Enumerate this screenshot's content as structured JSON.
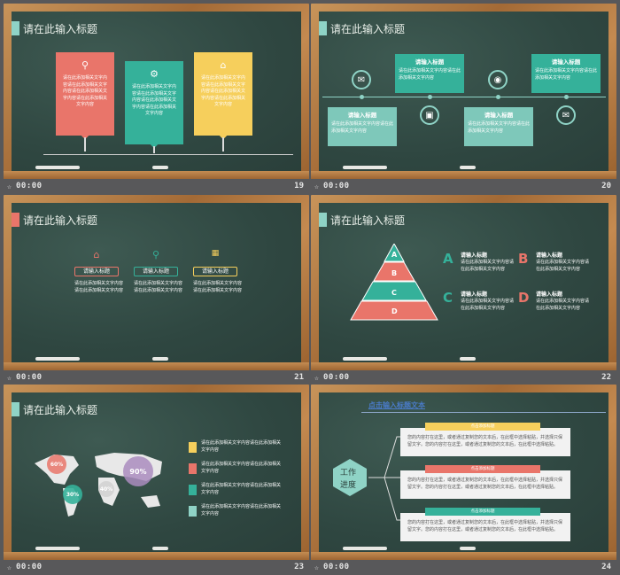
{
  "slides": [
    {
      "id": "19",
      "time": "00:00",
      "number": "19",
      "title": "请在此输入标题"
    },
    {
      "id": "20",
      "time": "00:00",
      "number": "20",
      "title": "请在此输入标题"
    },
    {
      "id": "21",
      "time": "00:00",
      "number": "21",
      "title": "请在此输入标题"
    },
    {
      "id": "22",
      "time": "00:00",
      "number": "22",
      "title": "请在此输入标题"
    },
    {
      "id": "23",
      "time": "00:00",
      "number": "23",
      "title": "请在此输入标题"
    },
    {
      "id": "24",
      "time": "00:00",
      "number": "24",
      "title": "点击输入标题文本"
    }
  ],
  "s19": {
    "cards": [
      {
        "text": "请在此添加相关文字内容请在此添加相关文字内容请在此添加相关文字内容请在此添加相关文字内容",
        "color": "#e9756a"
      },
      {
        "text": "请在此添加相关文字内容请在此添加相关文字内容请在此添加相关文字内容请在此添加相关文字内容",
        "color": "#35b19a"
      },
      {
        "text": "请在此添加相关文字内容请在此添加相关文字内容请在此添加相关文字内容请在此添加相关文字内容",
        "color": "#f6cf5c"
      }
    ]
  },
  "s20": {
    "box_title": "请输入标题",
    "box_text": "请在此添加相关文字内容请在此添加相关文字内容"
  },
  "s21": {
    "tag": "请输入标题",
    "text": "请在此添加相关文字内容请在此添加相关文字内容"
  },
  "s22": {
    "levels": [
      "A",
      "B",
      "C",
      "D"
    ],
    "item_title": "请输入标题",
    "item_text": "请在此添加相关文字内容请在此添加相关文字内容",
    "colors": {
      "A": "#35b19a",
      "B": "#e9756a",
      "C": "#35b19a",
      "D": "#e9756a"
    }
  },
  "s23": {
    "bubbles": [
      "60%",
      "90%",
      "30%",
      "40%"
    ],
    "items": [
      "请在此添加相关文字内容请在此添加相关文字内容",
      "请在此添加相关文字内容请在此添加相关文字内容",
      "请在此添加相关文字内容请在此添加相关文字内容",
      "请在此添加相关文字内容请在此添加相关文字内容"
    ]
  },
  "s24": {
    "hex_label_1": "工作",
    "hex_label_2": "进度",
    "strip_label": "点击添加标题",
    "panel_text": "您的内容打在这里，或者通过复制您的文本后，在此框中选择粘贴，并选择只保留文字。您的内容打在这里，或者通过复制您的文本后，在此框中选择粘贴。"
  }
}
